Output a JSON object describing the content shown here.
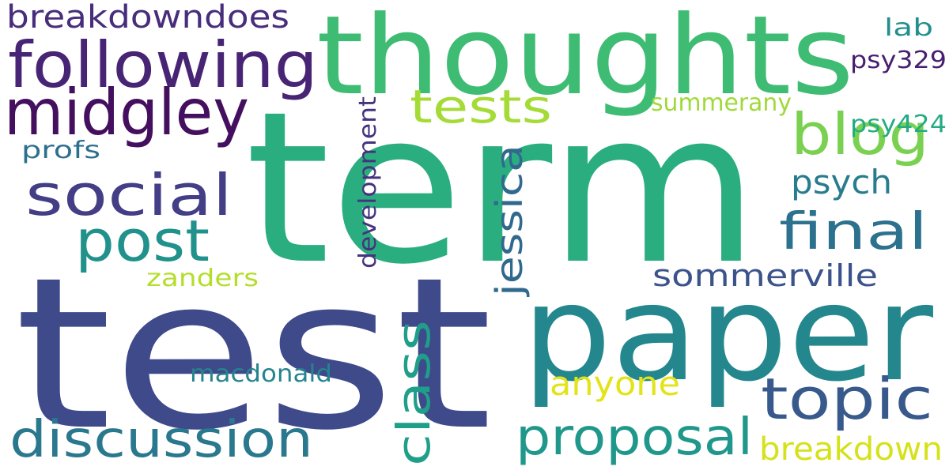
{
  "words": [
    {
      "text": "term",
      "color": "#2aae80"
    },
    {
      "text": "test",
      "color": "#3f4a8a"
    },
    {
      "text": "paper",
      "color": "#24878e"
    },
    {
      "text": "thoughts",
      "color": "#3fbc73"
    },
    {
      "text": "following",
      "color": "#482475"
    },
    {
      "text": "midgley",
      "color": "#440f5e"
    },
    {
      "text": "breakdowndoes",
      "color": "#472d7b"
    },
    {
      "text": "social",
      "color": "#433e85"
    },
    {
      "text": "post",
      "color": "#21918c"
    },
    {
      "text": "tests",
      "color": "#a5db36"
    },
    {
      "text": "blog",
      "color": "#7ad151"
    },
    {
      "text": "final",
      "color": "#2c728e"
    },
    {
      "text": "topic",
      "color": "#38598c"
    },
    {
      "text": "discussion",
      "color": "#2a788e"
    },
    {
      "text": "proposal",
      "color": "#1f988b"
    },
    {
      "text": "class",
      "color": "#1f9e89"
    },
    {
      "text": "jessica",
      "color": "#31688e"
    },
    {
      "text": "development",
      "color": "#46337e"
    },
    {
      "text": "psych",
      "color": "#287c8e"
    },
    {
      "text": "sommerville",
      "color": "#3b528b"
    },
    {
      "text": "anyone",
      "color": "#e2e418"
    },
    {
      "text": "breakdown",
      "color": "#d5e21a"
    },
    {
      "text": "summerany",
      "color": "#9fda3a"
    },
    {
      "text": "zanders",
      "color": "#b5de2b"
    },
    {
      "text": "macdonald",
      "color": "#25848e"
    },
    {
      "text": "profs",
      "color": "#2d708e"
    },
    {
      "text": "psy424",
      "color": "#25ab82"
    },
    {
      "text": "psy329",
      "color": "#481f70"
    },
    {
      "text": "lab",
      "color": "#218f8d"
    }
  ]
}
